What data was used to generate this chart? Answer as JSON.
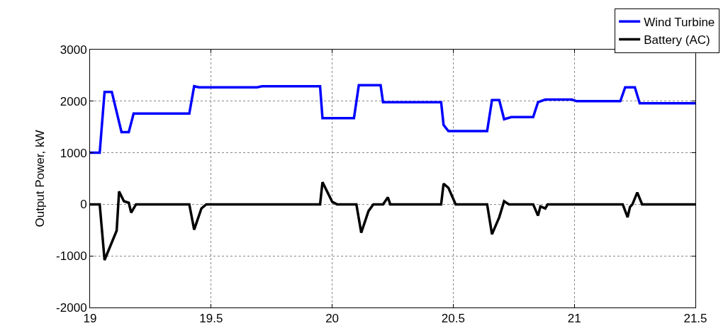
{
  "chart_data": {
    "type": "line",
    "ylabel": "Output Power, kW",
    "xlim": [
      19,
      21.5
    ],
    "xticks": [
      19,
      19.5,
      20,
      20.5,
      21,
      21.5
    ],
    "ylim": [
      -2000,
      3000
    ],
    "yticks": [
      -2000,
      -1000,
      0,
      1000,
      2000,
      3000
    ],
    "grid": true,
    "legend": "top right",
    "line_style": "solid",
    "marker": "none",
    "series": [
      {
        "name": "Wind Turbine",
        "color": "#0000ff",
        "x": [
          19,
          19.04,
          19.06,
          19.09,
          19.13,
          19.16,
          19.18,
          19.41,
          19.43,
          19.45,
          19.69,
          19.71,
          19.95,
          19.96,
          20.09,
          20.11,
          20.2,
          20.21,
          20.45,
          20.46,
          20.48,
          20.64,
          20.66,
          20.69,
          20.71,
          20.74,
          20.83,
          20.85,
          20.88,
          20.99,
          21.01,
          21.19,
          21.21,
          21.25,
          21.27,
          21.5
        ],
        "values": [
          1000,
          1000,
          2180,
          2180,
          1400,
          1400,
          1760,
          1760,
          2290,
          2270,
          2270,
          2290,
          2290,
          1670,
          1670,
          2310,
          2310,
          1980,
          1980,
          1540,
          1420,
          1420,
          2020,
          2020,
          1650,
          1690,
          1690,
          1980,
          2030,
          2030,
          2000,
          2000,
          2270,
          2270,
          1960,
          1960
        ]
      },
      {
        "name": "Battery (AC)",
        "color": "#000000",
        "x": [
          19,
          19.04,
          19.06,
          19.11,
          19.12,
          19.14,
          19.16,
          19.17,
          19.19,
          19.41,
          19.43,
          19.46,
          19.48,
          19.95,
          19.96,
          20,
          20.02,
          20.1,
          20.12,
          20.15,
          20.17,
          20.21,
          20.23,
          20.24,
          20.45,
          20.46,
          20.48,
          20.51,
          20.64,
          20.66,
          20.69,
          20.71,
          20.73,
          20.83,
          20.85,
          20.86,
          20.88,
          20.89,
          21.2,
          21.22,
          21.23,
          21.24,
          21.26,
          21.28,
          21.5
        ],
        "values": [
          0,
          0,
          -1080,
          -510,
          250,
          60,
          30,
          -160,
          0,
          0,
          -490,
          -80,
          0,
          0,
          430,
          50,
          0,
          0,
          -550,
          -130,
          0,
          0,
          135,
          0,
          0,
          400,
          320,
          0,
          0,
          -580,
          -250,
          60,
          0,
          0,
          -220,
          -40,
          -80,
          0,
          0,
          -250,
          -50,
          0,
          230,
          0,
          0
        ]
      }
    ]
  }
}
